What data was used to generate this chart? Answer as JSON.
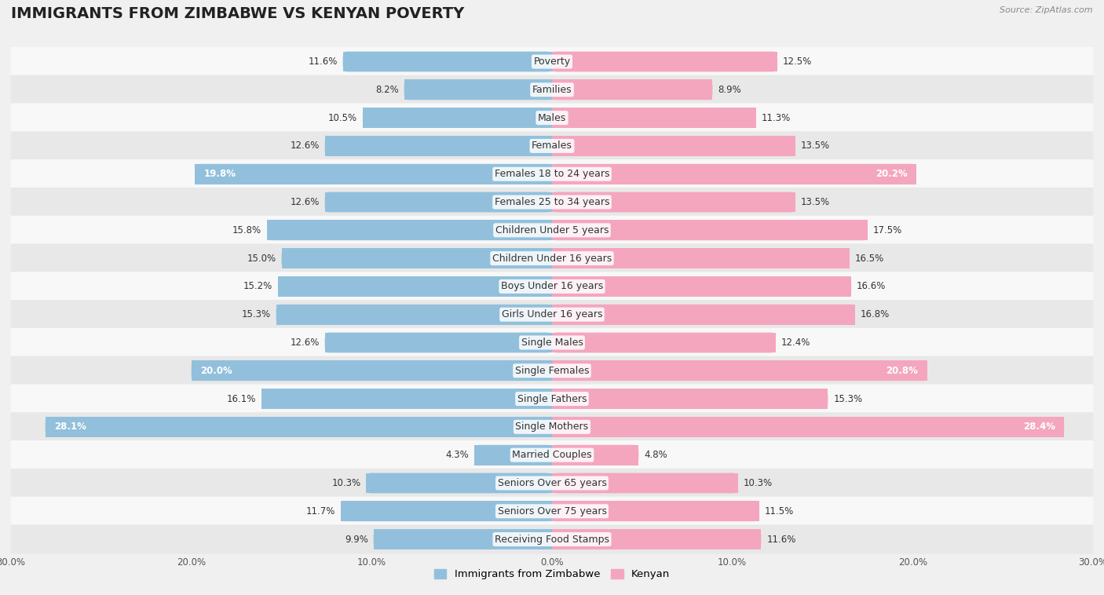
{
  "title": "IMMIGRANTS FROM ZIMBABWE VS KENYAN POVERTY",
  "source": "Source: ZipAtlas.com",
  "categories": [
    "Poverty",
    "Families",
    "Males",
    "Females",
    "Females 18 to 24 years",
    "Females 25 to 34 years",
    "Children Under 5 years",
    "Children Under 16 years",
    "Boys Under 16 years",
    "Girls Under 16 years",
    "Single Males",
    "Single Females",
    "Single Fathers",
    "Single Mothers",
    "Married Couples",
    "Seniors Over 65 years",
    "Seniors Over 75 years",
    "Receiving Food Stamps"
  ],
  "zimbabwe_values": [
    11.6,
    8.2,
    10.5,
    12.6,
    19.8,
    12.6,
    15.8,
    15.0,
    15.2,
    15.3,
    12.6,
    20.0,
    16.1,
    28.1,
    4.3,
    10.3,
    11.7,
    9.9
  ],
  "kenyan_values": [
    12.5,
    8.9,
    11.3,
    13.5,
    20.2,
    13.5,
    17.5,
    16.5,
    16.6,
    16.8,
    12.4,
    20.8,
    15.3,
    28.4,
    4.8,
    10.3,
    11.5,
    11.6
  ],
  "zimbabwe_color": "#92C0DC",
  "kenyan_color": "#F4A6BE",
  "highlight_zimbabwe": [
    4,
    11,
    13
  ],
  "highlight_kenyan": [
    4,
    11,
    13
  ],
  "xlim": 30,
  "background_color": "#f0f0f0",
  "row_bg_light": "#f8f8f8",
  "row_bg_dark": "#e8e8e8",
  "legend_zimbabwe": "Immigrants from Zimbabwe",
  "legend_kenyan": "Kenyan",
  "title_fontsize": 14,
  "label_fontsize": 9,
  "value_fontsize": 8.5,
  "tick_fontsize": 8.5
}
